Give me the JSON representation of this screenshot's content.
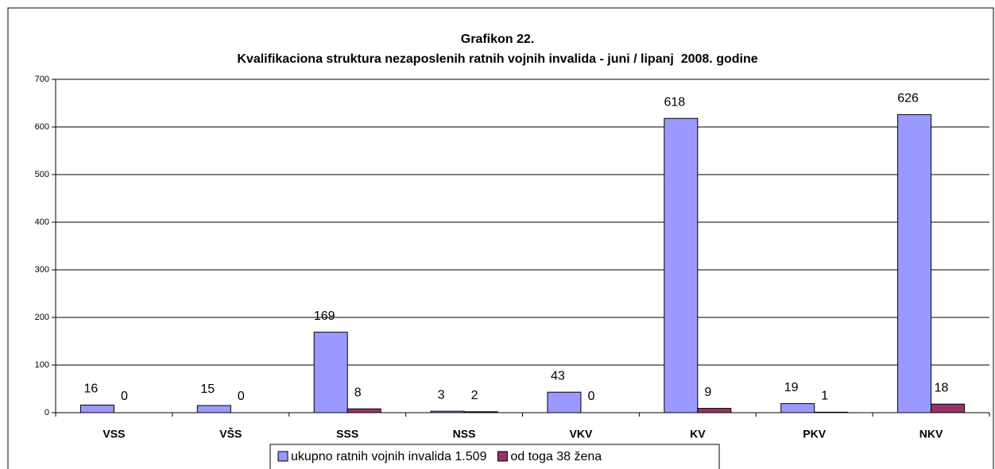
{
  "chart_data": {
    "type": "bar",
    "title": "Grafikon 22.",
    "subtitle": "Kvalifikaciona struktura nezaposlenih ratnih vojnih invalida - juni / lipanj  2008. godine",
    "categories": [
      "VSS",
      "VŠS",
      "SSS",
      "NSS",
      "VKV",
      "KV",
      "PKV",
      "NKV"
    ],
    "series": [
      {
        "name": "ukupno ratnih vojnih invalida 1.509",
        "color": "#9999ff",
        "values": [
          16,
          15,
          169,
          3,
          43,
          618,
          19,
          626
        ]
      },
      {
        "name": "od toga 38 žena",
        "color": "#993366",
        "values": [
          0,
          0,
          8,
          2,
          0,
          9,
          1,
          18
        ]
      }
    ],
    "ylim": [
      0,
      700
    ],
    "yticks": [
      0,
      100,
      200,
      300,
      400,
      500,
      600,
      700
    ],
    "grid": true,
    "legend": "bottom"
  }
}
